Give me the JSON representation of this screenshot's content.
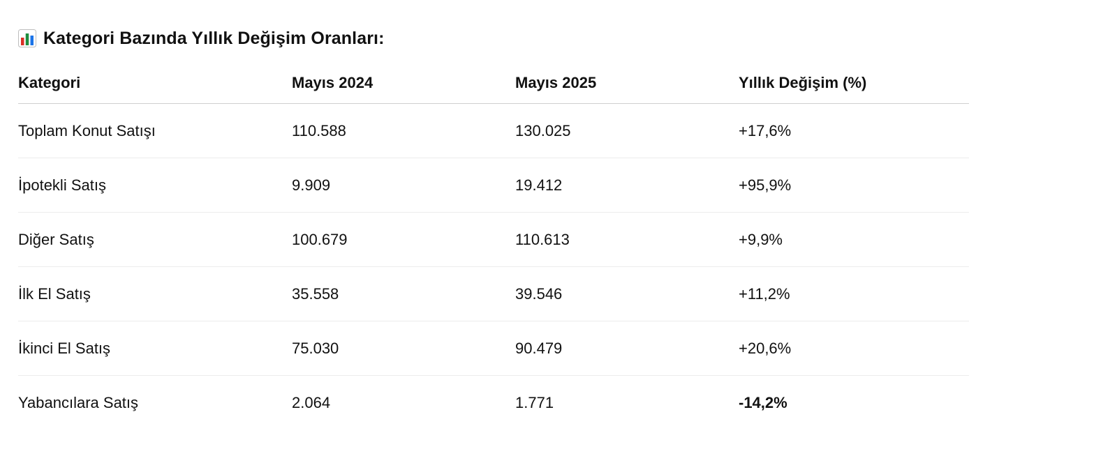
{
  "heading": {
    "icon": "bar-chart-icon",
    "title": "Kategori Bazında Yıllık Değişim Oranları:"
  },
  "table": {
    "headers": [
      "Kategori",
      "Mayıs 2024",
      "Mayıs 2025",
      "Yıllık Değişim (%)"
    ],
    "rows": [
      [
        "Toplam Konut Satışı",
        "110.588",
        "130.025",
        "+17,6%"
      ],
      [
        "İpotekli Satış",
        "9.909",
        "19.412",
        "+95,9%"
      ],
      [
        "Diğer Satış",
        "100.679",
        "110.613",
        "+9,9%"
      ],
      [
        "İlk El Satış",
        "35.558",
        "39.546",
        "+11,2%"
      ],
      [
        "İkinci El Satış",
        "75.030",
        "90.479",
        "+20,6%"
      ],
      [
        "Yabancılara Satış",
        "2.064",
        "1.771",
        "-14,2%"
      ]
    ],
    "emphasized_cell": "-14,2%"
  },
  "colors": {
    "text": "#111111",
    "header_rule": "#cfcfcf",
    "row_rule": "#ececec",
    "icon_bar_red": "#d93025",
    "icon_bar_green": "#1e8e3e",
    "icon_bar_blue": "#1a73e8"
  }
}
